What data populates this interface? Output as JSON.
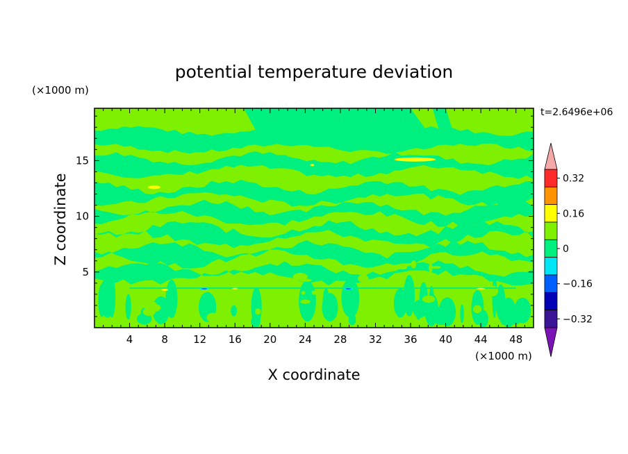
{
  "chart_data": {
    "type": "heatmap",
    "title": "potential temperature deviation",
    "xlabel": "X coordinate",
    "ylabel": "Z coordinate",
    "x_unit": "(×1000 m)",
    "y_unit": "(×1000 m)",
    "time_label": "t=2.6496e+06",
    "xlim": [
      0,
      50
    ],
    "ylim": [
      0,
      19.7
    ],
    "x_ticks": [
      4,
      8,
      12,
      16,
      20,
      24,
      28,
      32,
      36,
      40,
      44,
      48
    ],
    "y_ticks": [
      5,
      10,
      15
    ],
    "colorbar": {
      "levels": [
        -0.4,
        -0.32,
        -0.24,
        -0.16,
        -0.08,
        0,
        0.08,
        0.16,
        0.24,
        0.32,
        0.4
      ],
      "tick_labels": [
        "0.32",
        "0.16",
        "0",
        "−0.16",
        "−0.32"
      ],
      "tick_values": [
        0.32,
        0.16,
        0,
        -0.16,
        -0.32
      ],
      "colors_top_to_bottom": [
        "#ff2a2a",
        "#ff9400",
        "#ffff00",
        "#7ff000",
        "#00f080",
        "#00e6f4",
        "#0060ff",
        "#0000b4",
        "#3c1496"
      ],
      "over_color": "#f4a8a8",
      "under_color": "#7a14b4"
    },
    "field_colors": {
      "positive_weak": "#7ff000",
      "negative_weak": "#00f080",
      "positive_medium": "#ffff00",
      "negative_medium": "#00e6f4",
      "negative_strong": "#0060ff"
    }
  }
}
